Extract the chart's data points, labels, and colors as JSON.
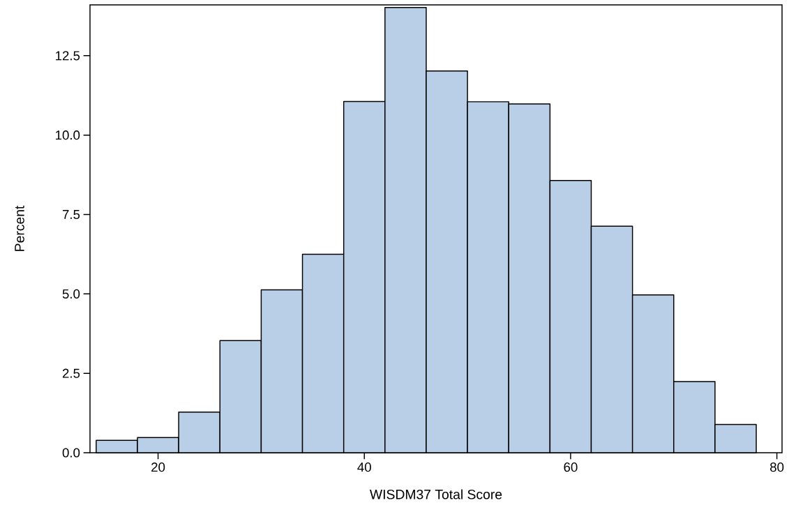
{
  "chart_data": {
    "type": "histogram",
    "xlabel": "WISDM37 Total Score",
    "ylabel": "Percent",
    "bins": [
      14,
      18,
      22,
      26,
      30,
      34,
      38,
      42,
      46,
      50,
      54,
      58,
      62,
      66,
      70,
      74,
      78
    ],
    "values": [
      0.39,
      0.48,
      1.28,
      3.53,
      5.13,
      6.25,
      11.06,
      14.02,
      12.02,
      11.05,
      10.98,
      8.57,
      7.13,
      4.97,
      2.24,
      0.89
    ],
    "color": "#b9cfe7",
    "xlim": [
      13.4,
      80.5
    ],
    "ylim": [
      0,
      14.1
    ],
    "xticks": [
      20,
      40,
      60,
      80
    ],
    "yticks": [
      {
        "value": 0,
        "label": "0.0"
      },
      {
        "value": 2.5,
        "label": "2.5"
      },
      {
        "value": 5,
        "label": "5.0"
      },
      {
        "value": 7.5,
        "label": "7.5"
      },
      {
        "value": 10,
        "label": "10.0"
      },
      {
        "value": 12.5,
        "label": "12.5"
      }
    ]
  }
}
